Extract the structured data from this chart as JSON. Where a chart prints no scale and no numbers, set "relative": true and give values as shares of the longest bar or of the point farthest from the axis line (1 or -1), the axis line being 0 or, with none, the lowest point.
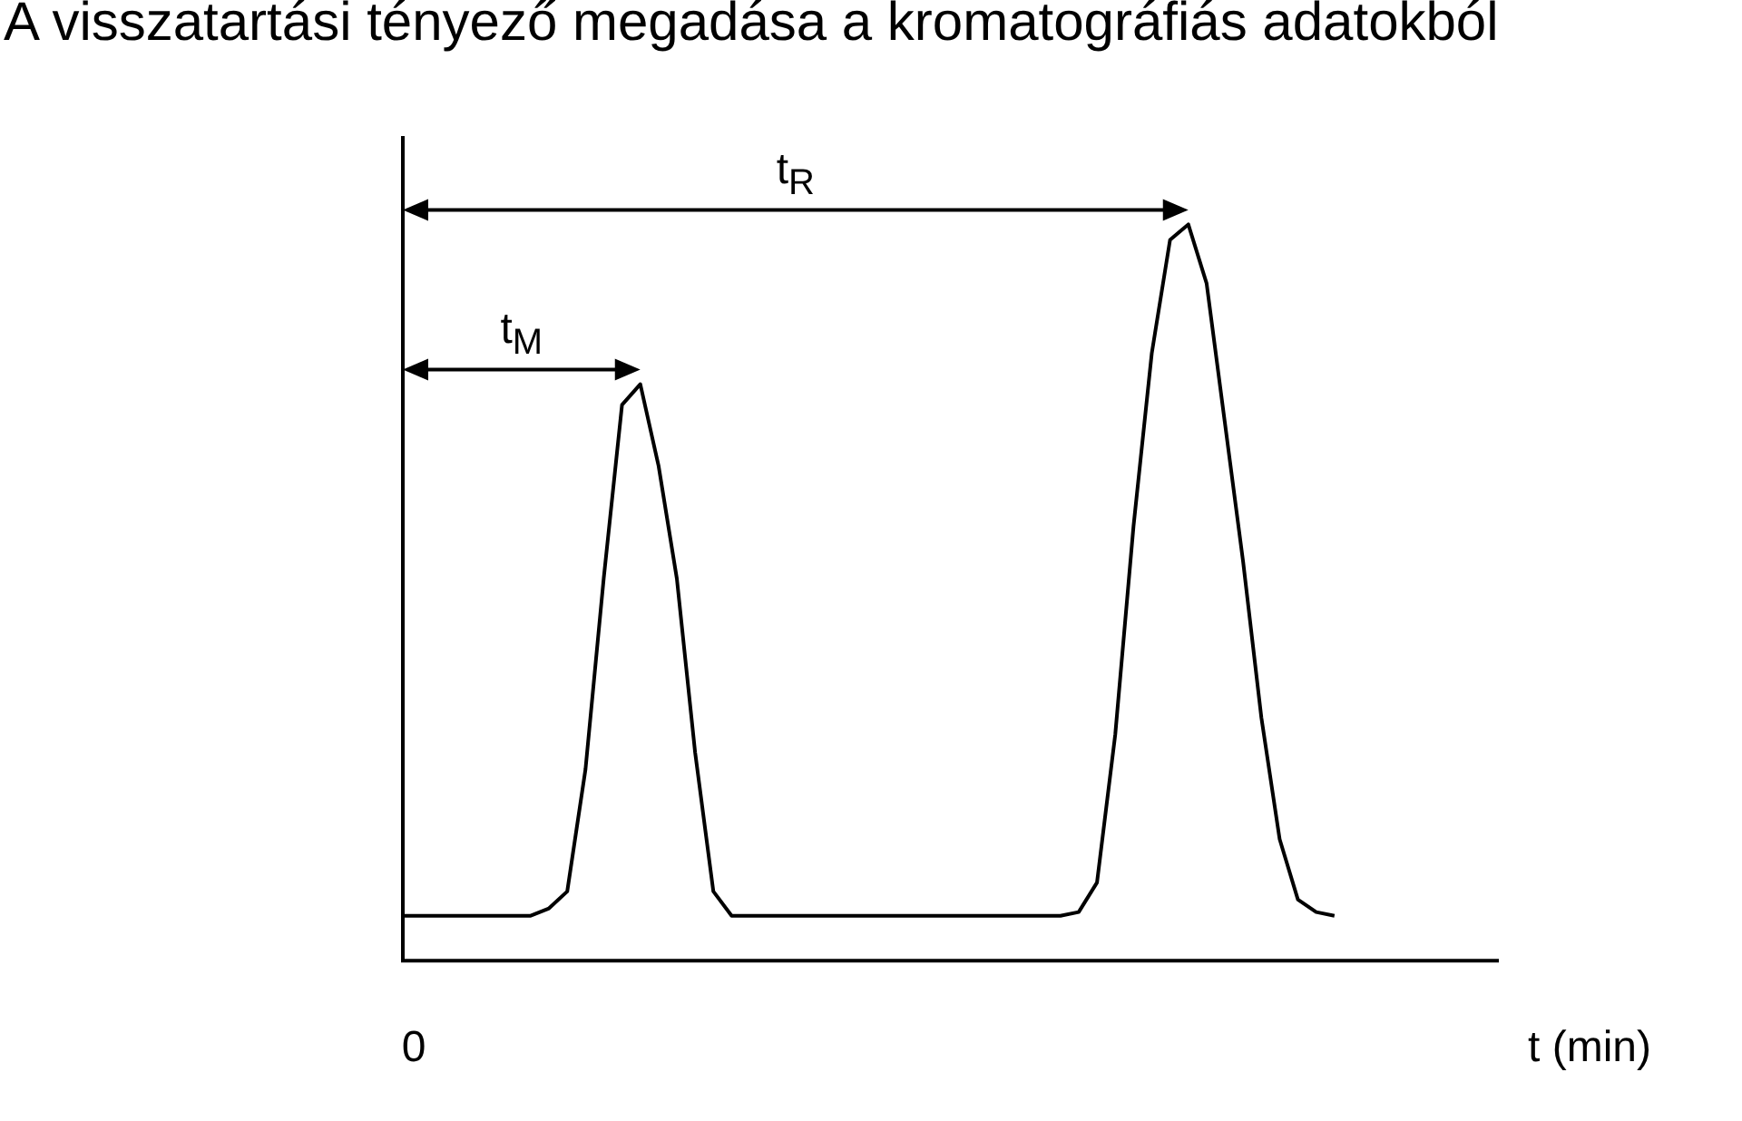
{
  "chart_data": {
    "type": "line",
    "title": "A visszatartási tényező megadása a kromatográfiás adatokból",
    "xlabel": "t (min)",
    "relative": true,
    "grid": false,
    "legend": false,
    "marker": "none",
    "line_style": "solid",
    "categories": [
      null,
      null,
      null,
      null,
      null,
      null,
      null,
      null,
      null,
      null,
      null,
      null,
      null,
      null,
      null,
      null,
      null,
      null,
      null,
      null,
      null,
      null,
      null,
      null,
      null,
      null,
      null,
      null,
      null,
      null,
      null,
      null,
      null,
      null,
      null,
      null,
      null,
      null,
      null,
      null,
      null,
      null,
      null,
      null,
      null,
      null,
      null,
      null,
      null,
      null,
      null,
      null,
      null,
      null,
      null,
      null,
      null,
      null,
      null,
      null,
      null
    ],
    "series": [
      {
        "color": "#000000",
        "values": [
          0.061,
          0.061,
          0.061,
          0.061,
          0.061,
          0.061,
          0.061,
          0.061,
          0.071,
          0.094,
          0.26,
          0.52,
          0.755,
          0.783,
          0.672,
          0.519,
          0.283,
          0.094,
          0.061,
          0.061,
          0.061,
          0.061,
          0.061,
          0.061,
          0.061,
          0.061,
          0.061,
          0.061,
          0.061,
          0.061,
          0.061,
          0.061,
          0.061,
          0.061,
          0.061,
          0.061,
          0.061,
          0.066,
          0.106,
          0.307,
          0.59,
          0.825,
          0.979,
          1,
          0.92,
          0.731,
          0.542,
          0.33,
          0.165,
          0.083,
          0.066,
          0.061,
          null,
          null,
          null,
          null,
          null,
          null,
          null,
          null,
          null
        ]
      }
    ],
    "annotations": [
      "t$_{M}$",
      "t$_{R}$",
      "0"
    ]
  }
}
